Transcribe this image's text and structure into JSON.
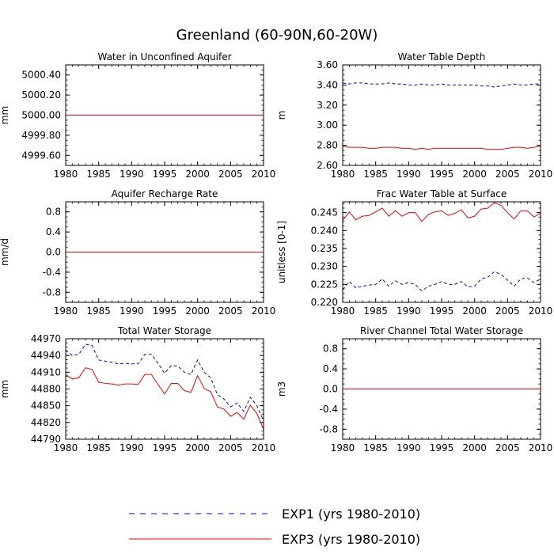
{
  "figure": {
    "title": "Greenland (60-90N,60-20W)",
    "legend": [
      {
        "label": "EXP1 (yrs 1980-2010)",
        "color": "#0000ff",
        "style": "dashed"
      },
      {
        "label": "EXP3 (yrs 1980-2010)",
        "color": "#ff0000",
        "style": "solid"
      }
    ]
  },
  "chart_data": [
    {
      "type": "line",
      "title": "Water in Unconfined Aquifer",
      "ylabel": "mm",
      "xlabel": "",
      "x_ticks": [
        1980,
        1985,
        1990,
        1995,
        2000,
        2005,
        2010
      ],
      "y_ticks": [
        4999.6,
        4999.8,
        5000.0,
        5000.2,
        5000.4
      ],
      "y_tick_labels": [
        "4999.60",
        "4999.80",
        "5000.00",
        "5000.20",
        "5000.40"
      ],
      "xlim": [
        1980,
        2010
      ],
      "ylim": [
        4999.5,
        5000.5
      ],
      "x": [
        1980,
        2010
      ],
      "series": [
        {
          "name": "EXP1 (yrs 1980-2010)",
          "color": "#0000ff",
          "dash": true,
          "values": [
            5000.0,
            5000.0
          ]
        },
        {
          "name": "EXP3 (yrs 1980-2010)",
          "color": "#ff0000",
          "dash": false,
          "values": [
            5000.0,
            5000.0
          ]
        }
      ]
    },
    {
      "type": "line",
      "title": "Water Table Depth",
      "ylabel": "m",
      "xlabel": "",
      "x_ticks": [
        1980,
        1985,
        1990,
        1995,
        2000,
        2005,
        2010
      ],
      "y_ticks": [
        2.6,
        2.8,
        3.0,
        3.2,
        3.4,
        3.6
      ],
      "y_tick_labels": [
        "2.60",
        "2.80",
        "3.00",
        "3.20",
        "3.40",
        "3.60"
      ],
      "xlim": [
        1980,
        2010
      ],
      "ylim": [
        2.6,
        3.6
      ],
      "x": [
        1980,
        1981,
        1982,
        1983,
        1984,
        1985,
        1986,
        1987,
        1988,
        1989,
        1990,
        1991,
        1992,
        1993,
        1994,
        1995,
        1996,
        1997,
        1998,
        1999,
        2000,
        2001,
        2002,
        2003,
        2004,
        2005,
        2006,
        2007,
        2008,
        2009,
        2010
      ],
      "series": [
        {
          "name": "EXP1 (yrs 1980-2010)",
          "color": "#0000ff",
          "dash": true,
          "values": [
            3.42,
            3.41,
            3.42,
            3.42,
            3.41,
            3.41,
            3.41,
            3.42,
            3.41,
            3.41,
            3.4,
            3.4,
            3.41,
            3.4,
            3.4,
            3.41,
            3.4,
            3.4,
            3.4,
            3.4,
            3.4,
            3.39,
            3.39,
            3.38,
            3.39,
            3.4,
            3.41,
            3.4,
            3.4,
            3.41,
            3.41
          ]
        },
        {
          "name": "EXP3 (yrs 1980-2010)",
          "color": "#ff0000",
          "dash": false,
          "values": [
            2.79,
            2.78,
            2.78,
            2.78,
            2.77,
            2.77,
            2.78,
            2.78,
            2.78,
            2.77,
            2.77,
            2.76,
            2.77,
            2.76,
            2.77,
            2.77,
            2.77,
            2.77,
            2.77,
            2.77,
            2.77,
            2.77,
            2.76,
            2.76,
            2.76,
            2.77,
            2.78,
            2.78,
            2.77,
            2.78,
            2.79
          ]
        }
      ]
    },
    {
      "type": "line",
      "title": "Aquifer Recharge Rate",
      "ylabel": "mm/d",
      "xlabel": "",
      "x_ticks": [
        1980,
        1985,
        1990,
        1995,
        2000,
        2005,
        2010
      ],
      "y_ticks": [
        -0.8,
        -0.4,
        0.0,
        0.4,
        0.8
      ],
      "y_tick_labels": [
        "-0.8",
        "-0.4",
        "0.0",
        "0.4",
        "0.8"
      ],
      "xlim": [
        1980,
        2010
      ],
      "ylim": [
        -1.0,
        1.0
      ],
      "x": [
        1980,
        2010
      ],
      "series": [
        {
          "name": "EXP1 (yrs 1980-2010)",
          "color": "#0000ff",
          "dash": true,
          "values": [
            0.0,
            0.0
          ]
        },
        {
          "name": "EXP3 (yrs 1980-2010)",
          "color": "#ff0000",
          "dash": false,
          "values": [
            0.0,
            0.0
          ]
        }
      ]
    },
    {
      "type": "line",
      "title": "Frac Water Table at Surface",
      "ylabel": "unitless [0-1]",
      "xlabel": "",
      "x_ticks": [
        1980,
        1985,
        1990,
        1995,
        2000,
        2005,
        2010
      ],
      "y_ticks": [
        0.22,
        0.225,
        0.23,
        0.235,
        0.24,
        0.245
      ],
      "y_tick_labels": [
        "0.220",
        "0.225",
        "0.230",
        "0.235",
        "0.240",
        "0.245"
      ],
      "xlim": [
        1980,
        2010
      ],
      "ylim": [
        0.22,
        0.248
      ],
      "x": [
        1980,
        1981,
        1982,
        1983,
        1984,
        1985,
        1986,
        1987,
        1988,
        1989,
        1990,
        1991,
        1992,
        1993,
        1994,
        1995,
        1996,
        1997,
        1998,
        1999,
        2000,
        2001,
        2002,
        2003,
        2004,
        2005,
        2006,
        2007,
        2008,
        2009,
        2010
      ],
      "series": [
        {
          "name": "EXP1 (yrs 1980-2010)",
          "color": "#0000ff",
          "dash": true,
          "values": [
            0.2235,
            0.2258,
            0.224,
            0.2245,
            0.2248,
            0.225,
            0.2265,
            0.2245,
            0.226,
            0.225,
            0.2255,
            0.225,
            0.2232,
            0.2245,
            0.225,
            0.2258,
            0.225,
            0.225,
            0.2258,
            0.2243,
            0.2245,
            0.2265,
            0.227,
            0.2285,
            0.2278,
            0.2262,
            0.2245,
            0.2265,
            0.2268,
            0.2255,
            0.2265
          ]
        },
        {
          "name": "EXP3 (yrs 1980-2010)",
          "color": "#ff0000",
          "dash": false,
          "values": [
            0.2428,
            0.2452,
            0.243,
            0.244,
            0.2442,
            0.2452,
            0.2462,
            0.244,
            0.2455,
            0.244,
            0.245,
            0.245,
            0.2425,
            0.2445,
            0.2452,
            0.2455,
            0.2442,
            0.2448,
            0.2458,
            0.2435,
            0.244,
            0.246,
            0.2462,
            0.2478,
            0.247,
            0.245,
            0.2432,
            0.2455,
            0.2455,
            0.2438,
            0.2448
          ]
        }
      ]
    },
    {
      "type": "line",
      "title": "Total Water Storage",
      "ylabel": "mm",
      "xlabel": "",
      "x_ticks": [
        1980,
        1985,
        1990,
        1995,
        2000,
        2005,
        2010
      ],
      "y_ticks": [
        44790,
        44820,
        44850,
        44880,
        44910,
        44940,
        44970
      ],
      "y_tick_labels": [
        "44790",
        "44820",
        "44850",
        "44880",
        "44910",
        "44940",
        "44970"
      ],
      "xlim": [
        1980,
        2010
      ],
      "ylim": [
        44790,
        44970
      ],
      "x": [
        1980,
        1981,
        1982,
        1983,
        1984,
        1985,
        1986,
        1987,
        1988,
        1989,
        1990,
        1991,
        1992,
        1993,
        1994,
        1995,
        1996,
        1997,
        1998,
        1999,
        2000,
        2001,
        2002,
        2003,
        2004,
        2005,
        2006,
        2007,
        2008,
        2009,
        2010
      ],
      "series": [
        {
          "name": "EXP1 (yrs 1980-2010)",
          "color": "#0000ff",
          "dash": true,
          "values": [
            44950,
            44940,
            44942,
            44960,
            44958,
            44932,
            44930,
            44928,
            44925,
            44926,
            44925,
            44925,
            44942,
            44942,
            44926,
            44908,
            44922,
            44921,
            44910,
            44906,
            44932,
            44910,
            44900,
            44870,
            44862,
            44848,
            44855,
            44840,
            44865,
            44850,
            44823
          ]
        },
        {
          "name": "EXP3 (yrs 1980-2010)",
          "color": "#ff0000",
          "dash": false,
          "values": [
            44906,
            44898,
            44900,
            44918,
            44915,
            44892,
            44890,
            44889,
            44887,
            44889,
            44889,
            44888,
            44906,
            44906,
            44888,
            44871,
            44890,
            44890,
            44877,
            44874,
            44904,
            44881,
            44875,
            44848,
            44844,
            44831,
            44838,
            44826,
            44851,
            44836,
            44808
          ]
        }
      ]
    },
    {
      "type": "line",
      "title": "River Channel Total Water Storage",
      "ylabel": "m3",
      "xlabel": "",
      "x_ticks": [
        1980,
        1985,
        1990,
        1995,
        2000,
        2005,
        2010
      ],
      "y_ticks": [
        -0.8,
        -0.4,
        0.0,
        0.4,
        0.8
      ],
      "y_tick_labels": [
        "-0.8",
        "-0.4",
        "0.0",
        "0.4",
        "0.8"
      ],
      "xlim": [
        1980,
        2010
      ],
      "ylim": [
        -1.0,
        1.0
      ],
      "x": [
        1980,
        2010
      ],
      "series": [
        {
          "name": "EXP1 (yrs 1980-2010)",
          "color": "#0000ff",
          "dash": true,
          "values": [
            0.0,
            0.0
          ]
        },
        {
          "name": "EXP3 (yrs 1980-2010)",
          "color": "#ff0000",
          "dash": false,
          "values": [
            0.0,
            0.0
          ]
        }
      ]
    }
  ]
}
